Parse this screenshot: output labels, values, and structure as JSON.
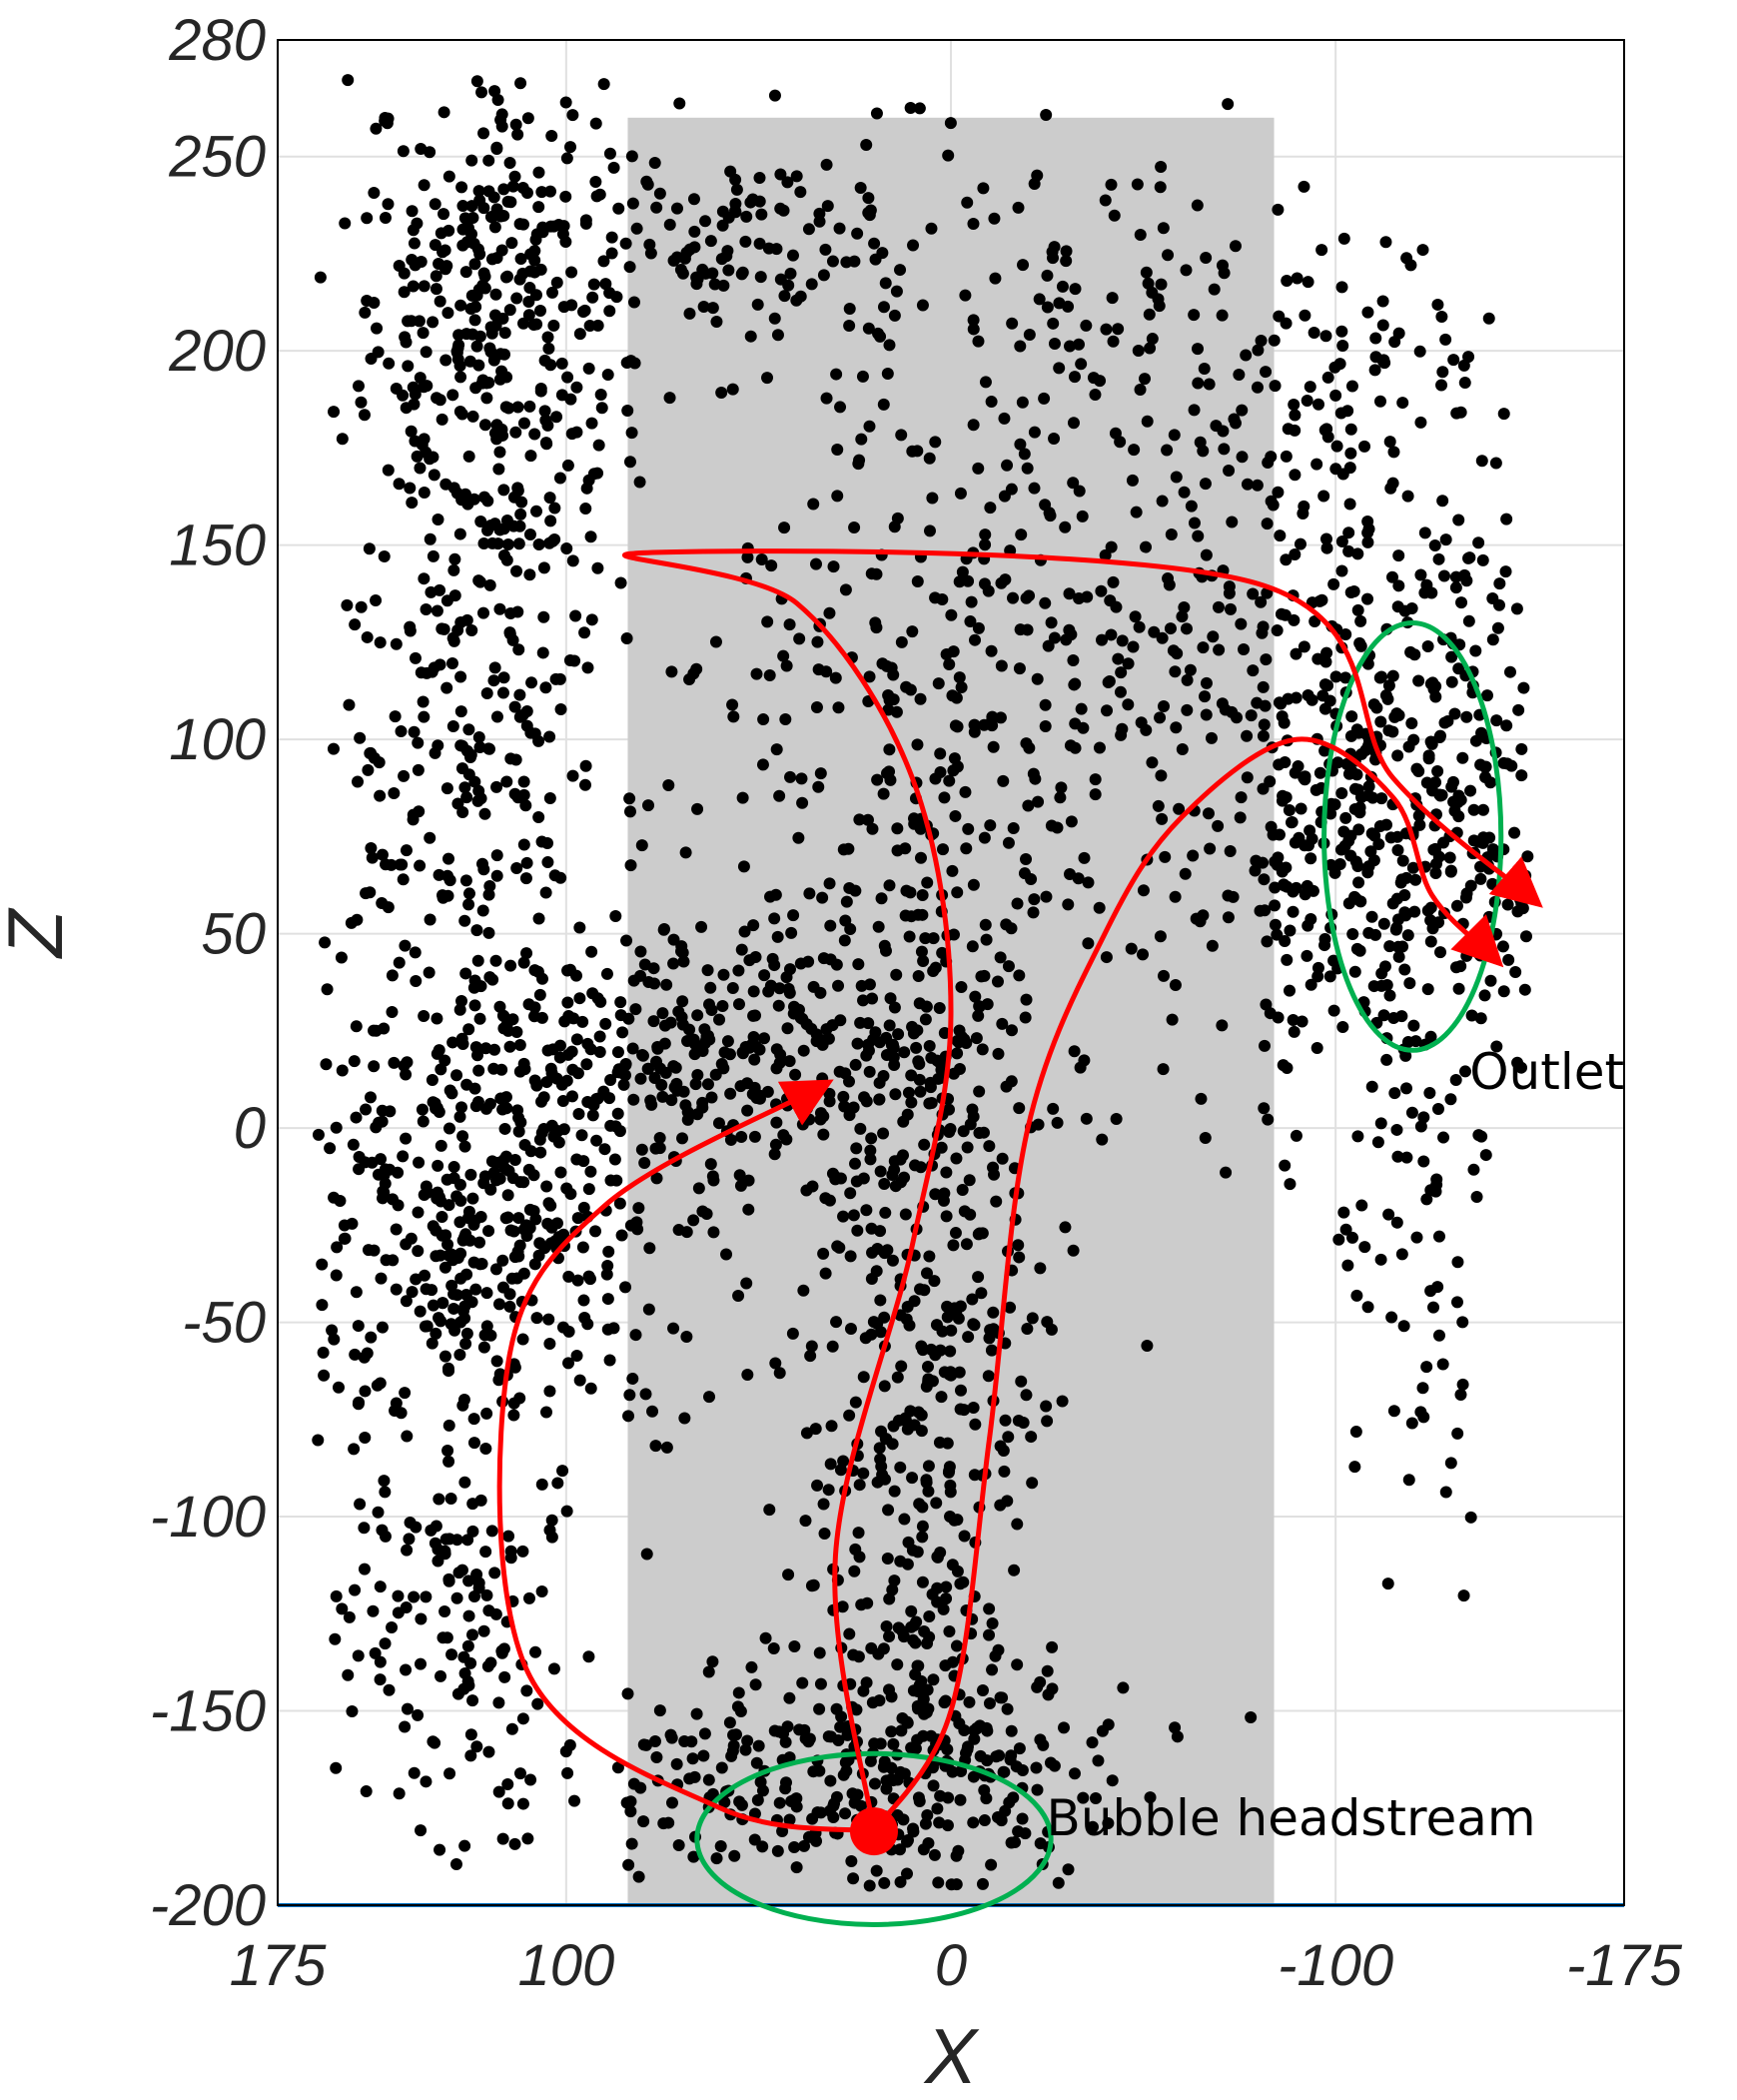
{
  "chart_data": {
    "type": "scatter",
    "xlabel": "X",
    "ylabel": "Z",
    "xlim": [
      175,
      -175
    ],
    "ylim": [
      -200,
      280
    ],
    "x_reversed": true,
    "grid": true,
    "x_ticks": [
      175,
      100,
      0,
      -100,
      -175
    ],
    "y_ticks": [
      280,
      250,
      200,
      150,
      100,
      50,
      0,
      -50,
      -100,
      -150,
      -200
    ],
    "x_tick_labels": [
      "175",
      "100",
      "0",
      "-100",
      "-175"
    ],
    "y_tick_labels": [
      "280",
      "250",
      "200",
      "150",
      "100",
      "50",
      "0",
      "-50",
      "-100",
      "-150",
      "-200"
    ],
    "shaded_region": {
      "x_from": 84,
      "x_to": -84,
      "z_from": -200,
      "z_to": 260,
      "color": "#cccccc"
    },
    "colors": {
      "points": "#000000",
      "arrows": "#ff0000",
      "ellipses": "#00b050",
      "grid": "#e0e0e0",
      "baseline": "#0070c0"
    },
    "annotations": [
      {
        "text": "Outlet",
        "x": -140,
        "z": 10
      },
      {
        "text": "Bubble headstream",
        "x": -30,
        "z": -182
      }
    ],
    "headstream_point": {
      "x": 20,
      "z": -181
    },
    "ellipses": [
      {
        "cx": 20,
        "cz": -183,
        "rx": 46,
        "rz": 22
      },
      {
        "cx": -120,
        "cz": 75,
        "rx": 23,
        "rz": 55
      }
    ],
    "arrows": [
      {
        "path": [
          [
            20,
            -181
          ],
          [
            60,
            -175
          ],
          [
            110,
            -140
          ],
          [
            115,
            -60
          ],
          [
            90,
            -20
          ],
          [
            35,
            10
          ]
        ]
      },
      {
        "path": [
          [
            20,
            -181
          ],
          [
            30,
            -110
          ],
          [
            10,
            -30
          ],
          [
            0,
            30
          ],
          [
            10,
            90
          ],
          [
            40,
            135
          ],
          [
            80,
            148
          ],
          [
            -80,
            140
          ],
          [
            -115,
            90
          ],
          [
            -150,
            60
          ]
        ]
      },
      {
        "path": [
          [
            20,
            -181
          ],
          [
            0,
            -150
          ],
          [
            -10,
            -80
          ],
          [
            -20,
            0
          ],
          [
            -40,
            50
          ],
          [
            -60,
            80
          ],
          [
            -90,
            100
          ],
          [
            -115,
            85
          ],
          [
            -125,
            60
          ],
          [
            -140,
            45
          ]
        ]
      }
    ],
    "point_clusters": [
      {
        "cx": 120,
        "cz": 200,
        "sx": 18,
        "sz": 40,
        "n": 380
      },
      {
        "cx": 125,
        "cz": 80,
        "sx": 20,
        "sz": 35,
        "n": 220
      },
      {
        "cx": 120,
        "cz": -25,
        "sx": 30,
        "sz": 30,
        "n": 480
      },
      {
        "cx": 130,
        "cz": -130,
        "sx": 15,
        "sz": 25,
        "n": 140
      },
      {
        "cx": 60,
        "cz": 225,
        "sx": 35,
        "sz": 15,
        "n": 160
      },
      {
        "cx": 50,
        "cz": 20,
        "sx": 35,
        "sz": 15,
        "n": 300
      },
      {
        "cx": 30,
        "cz": 100,
        "sx": 25,
        "sz": 70,
        "n": 160
      },
      {
        "cx": 5,
        "cz": -60,
        "sx": 15,
        "sz": 90,
        "n": 560
      },
      {
        "cx": 25,
        "cz": -165,
        "sx": 35,
        "sz": 15,
        "n": 300
      },
      {
        "cx": -40,
        "cz": 110,
        "sx": 35,
        "sz": 40,
        "n": 230
      },
      {
        "cx": -40,
        "cz": 210,
        "sx": 30,
        "sz": 25,
        "n": 90
      },
      {
        "cx": -115,
        "cz": 80,
        "sx": 25,
        "sz": 45,
        "n": 620
      },
      {
        "cx": -100,
        "cz": 200,
        "sx": 25,
        "sz": 15,
        "n": 70
      },
      {
        "cx": -120,
        "cz": -50,
        "sx": 10,
        "sz": 30,
        "n": 40
      }
    ]
  }
}
